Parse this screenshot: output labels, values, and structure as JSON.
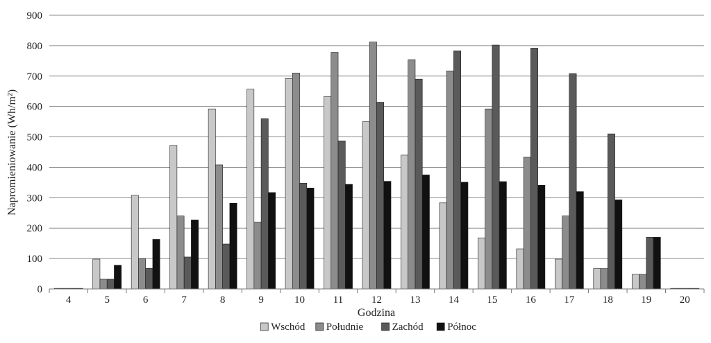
{
  "chart_data": {
    "type": "bar",
    "xlabel": "Godzina",
    "ylabel": "Napromieniowanie (Wh/m²)",
    "ylim": [
      0,
      900
    ],
    "yticks": [
      "0",
      "100",
      "200",
      "300",
      "400",
      "500",
      "600",
      "700",
      "800",
      "900"
    ],
    "grid": true,
    "legend_position": "bottom",
    "categories": [
      "4",
      "5",
      "6",
      "7",
      "8",
      "9",
      "10",
      "11",
      "12",
      "13",
      "14",
      "15",
      "16",
      "17",
      "18",
      "19",
      "20"
    ],
    "series": [
      {
        "name": "Wschód",
        "color": "#c8c8c8",
        "values": [
          2,
          98,
          308,
          472,
          592,
          657,
          692,
          633,
          550,
          440,
          283,
          168,
          132,
          98,
          67,
          48,
          2
        ]
      },
      {
        "name": "Południe",
        "color": "#8c8c8c",
        "values": [
          2,
          32,
          100,
          240,
          408,
          220,
          710,
          778,
          812,
          754,
          717,
          592,
          433,
          240,
          67,
          48,
          2
        ]
      },
      {
        "name": "Zachód",
        "color": "#5a5a5a",
        "values": [
          2,
          32,
          68,
          105,
          148,
          560,
          348,
          487,
          614,
          690,
          783,
          802,
          792,
          708,
          510,
          170,
          2
        ]
      },
      {
        "name": "Północ",
        "color": "#111111",
        "values": [
          2,
          78,
          163,
          227,
          282,
          317,
          332,
          344,
          354,
          375,
          351,
          353,
          341,
          320,
          293,
          170,
          2
        ]
      }
    ]
  }
}
